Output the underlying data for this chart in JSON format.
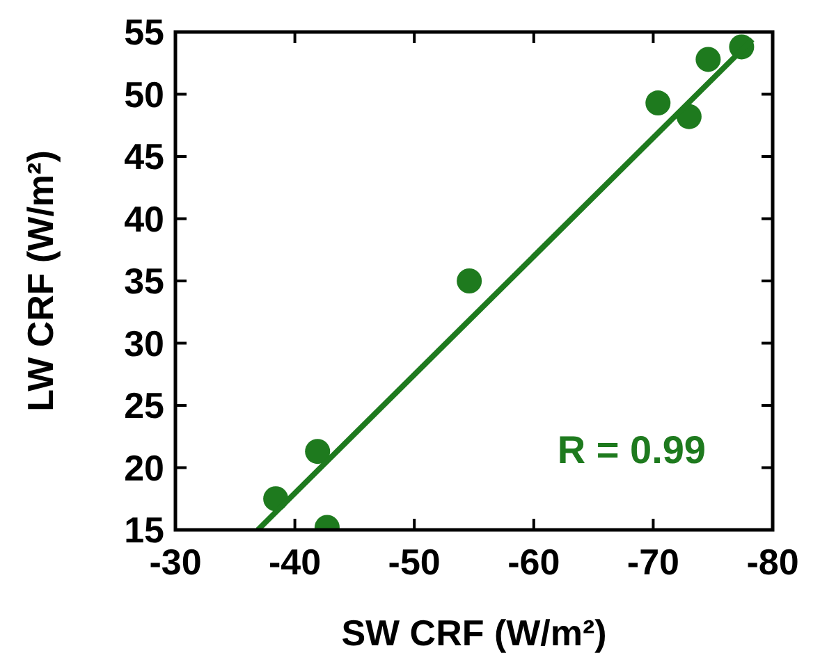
{
  "chart_data": {
    "type": "scatter",
    "xlabel": "SW CRF (W/m²)",
    "ylabel": "LW CRF (W/m²)",
    "xlim": [
      -30,
      -80
    ],
    "xticks": [
      -30,
      -40,
      -50,
      -60,
      -70,
      -80
    ],
    "ylim": [
      15,
      55
    ],
    "yticks": [
      15,
      20,
      25,
      30,
      35,
      40,
      45,
      50,
      55
    ],
    "grid": false,
    "series": [
      {
        "marker": "circle",
        "color": "#1e7a1e",
        "x": [
          -38.4,
          -41.9,
          -42.7,
          -54.6,
          -70.4,
          -73.0,
          -74.6,
          -77.4
        ],
        "values": [
          17.5,
          21.3,
          15.2,
          35.0,
          49.3,
          48.2,
          52.8,
          53.8
        ]
      },
      {
        "type": "line",
        "color": "#1e7a1e",
        "x": [
          -36.9,
          -78.3
        ],
        "values": [
          15,
          54.4
        ]
      }
    ],
    "annotations": [
      "R = 0.99"
    ]
  }
}
